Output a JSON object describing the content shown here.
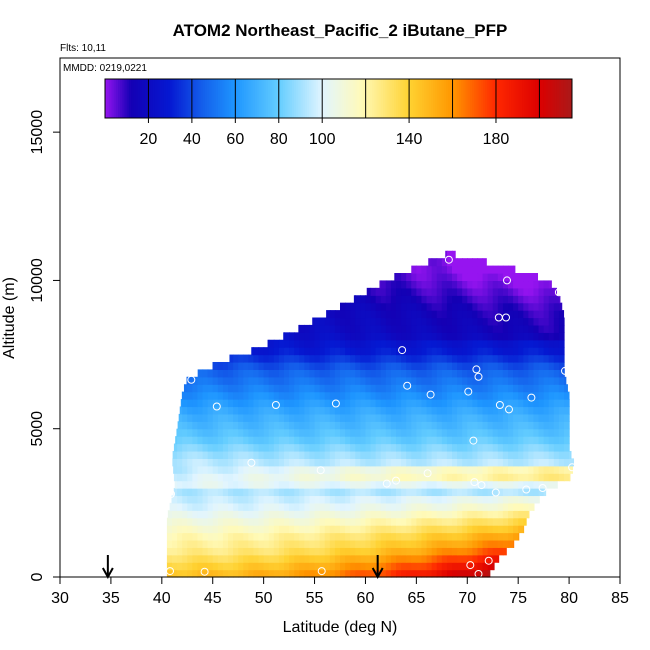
{
  "chart_data": {
    "type": "heatmap",
    "title": "ATOM2 Northeast_Pacific_2 iButane_PFP",
    "flights_text": "Flts: 10,11",
    "dates_text": "MMDD: 0219,0221",
    "xlabel": "Latitude (deg N)",
    "ylabel": "Altitude (m)",
    "xlim": [
      30,
      85
    ],
    "ylim": [
      0,
      17500
    ],
    "x_ticks": [
      "30",
      "35",
      "40",
      "45",
      "50",
      "55",
      "60",
      "65",
      "70",
      "75",
      "80",
      "85"
    ],
    "y_ticks": [
      "0",
      "5000",
      "10000",
      "15000"
    ],
    "colorbar": {
      "range": [
        0,
        215
      ],
      "ticks": [
        "20",
        "40",
        "60",
        "80",
        "100",
        "140",
        "180"
      ],
      "tick_values": [
        20,
        40,
        60,
        80,
        100,
        140,
        180
      ]
    },
    "arrows_lat": [
      34.7,
      61.2
    ],
    "field_extent": {
      "bottom": {
        "lat_min": 40.5,
        "lat_max": 72
      },
      "top": {
        "lat": 68,
        "alt": 10900
      }
    },
    "sample_points": [
      {
        "lat": 68.2,
        "alt": 10700
      },
      {
        "lat": 73.9,
        "alt": 10000
      },
      {
        "lat": 79,
        "alt": 9600
      },
      {
        "lat": 73.1,
        "alt": 8750
      },
      {
        "lat": 73.8,
        "alt": 8750
      },
      {
        "lat": 63.6,
        "alt": 7650
      },
      {
        "lat": 70.9,
        "alt": 7000
      },
      {
        "lat": 79.6,
        "alt": 6950
      },
      {
        "lat": 42.9,
        "alt": 6650
      },
      {
        "lat": 71.1,
        "alt": 6750
      },
      {
        "lat": 64.1,
        "alt": 6450
      },
      {
        "lat": 66.4,
        "alt": 6150
      },
      {
        "lat": 70.1,
        "alt": 6250
      },
      {
        "lat": 76.3,
        "alt": 6050
      },
      {
        "lat": 57.1,
        "alt": 5850
      },
      {
        "lat": 51.2,
        "alt": 5800
      },
      {
        "lat": 45.4,
        "alt": 5750
      },
      {
        "lat": 73.2,
        "alt": 5800
      },
      {
        "lat": 74.1,
        "alt": 5650
      },
      {
        "lat": 70.6,
        "alt": 4600
      },
      {
        "lat": 48.8,
        "alt": 3850
      },
      {
        "lat": 55.6,
        "alt": 3600
      },
      {
        "lat": 63,
        "alt": 3250
      },
      {
        "lat": 62.1,
        "alt": 3150
      },
      {
        "lat": 70.7,
        "alt": 3200
      },
      {
        "lat": 71.4,
        "alt": 3100
      },
      {
        "lat": 66.1,
        "alt": 3500
      },
      {
        "lat": 40.9,
        "alt": 2800
      },
      {
        "lat": 72.8,
        "alt": 2850
      },
      {
        "lat": 75.8,
        "alt": 2950
      },
      {
        "lat": 77.4,
        "alt": 3000
      },
      {
        "lat": 80.3,
        "alt": 3700
      },
      {
        "lat": 40.8,
        "alt": 200
      },
      {
        "lat": 44.2,
        "alt": 180
      },
      {
        "lat": 55.7,
        "alt": 200
      },
      {
        "lat": 70.3,
        "alt": 400
      },
      {
        "lat": 71.1,
        "alt": 100
      },
      {
        "lat": 72.1,
        "alt": 550
      }
    ]
  }
}
